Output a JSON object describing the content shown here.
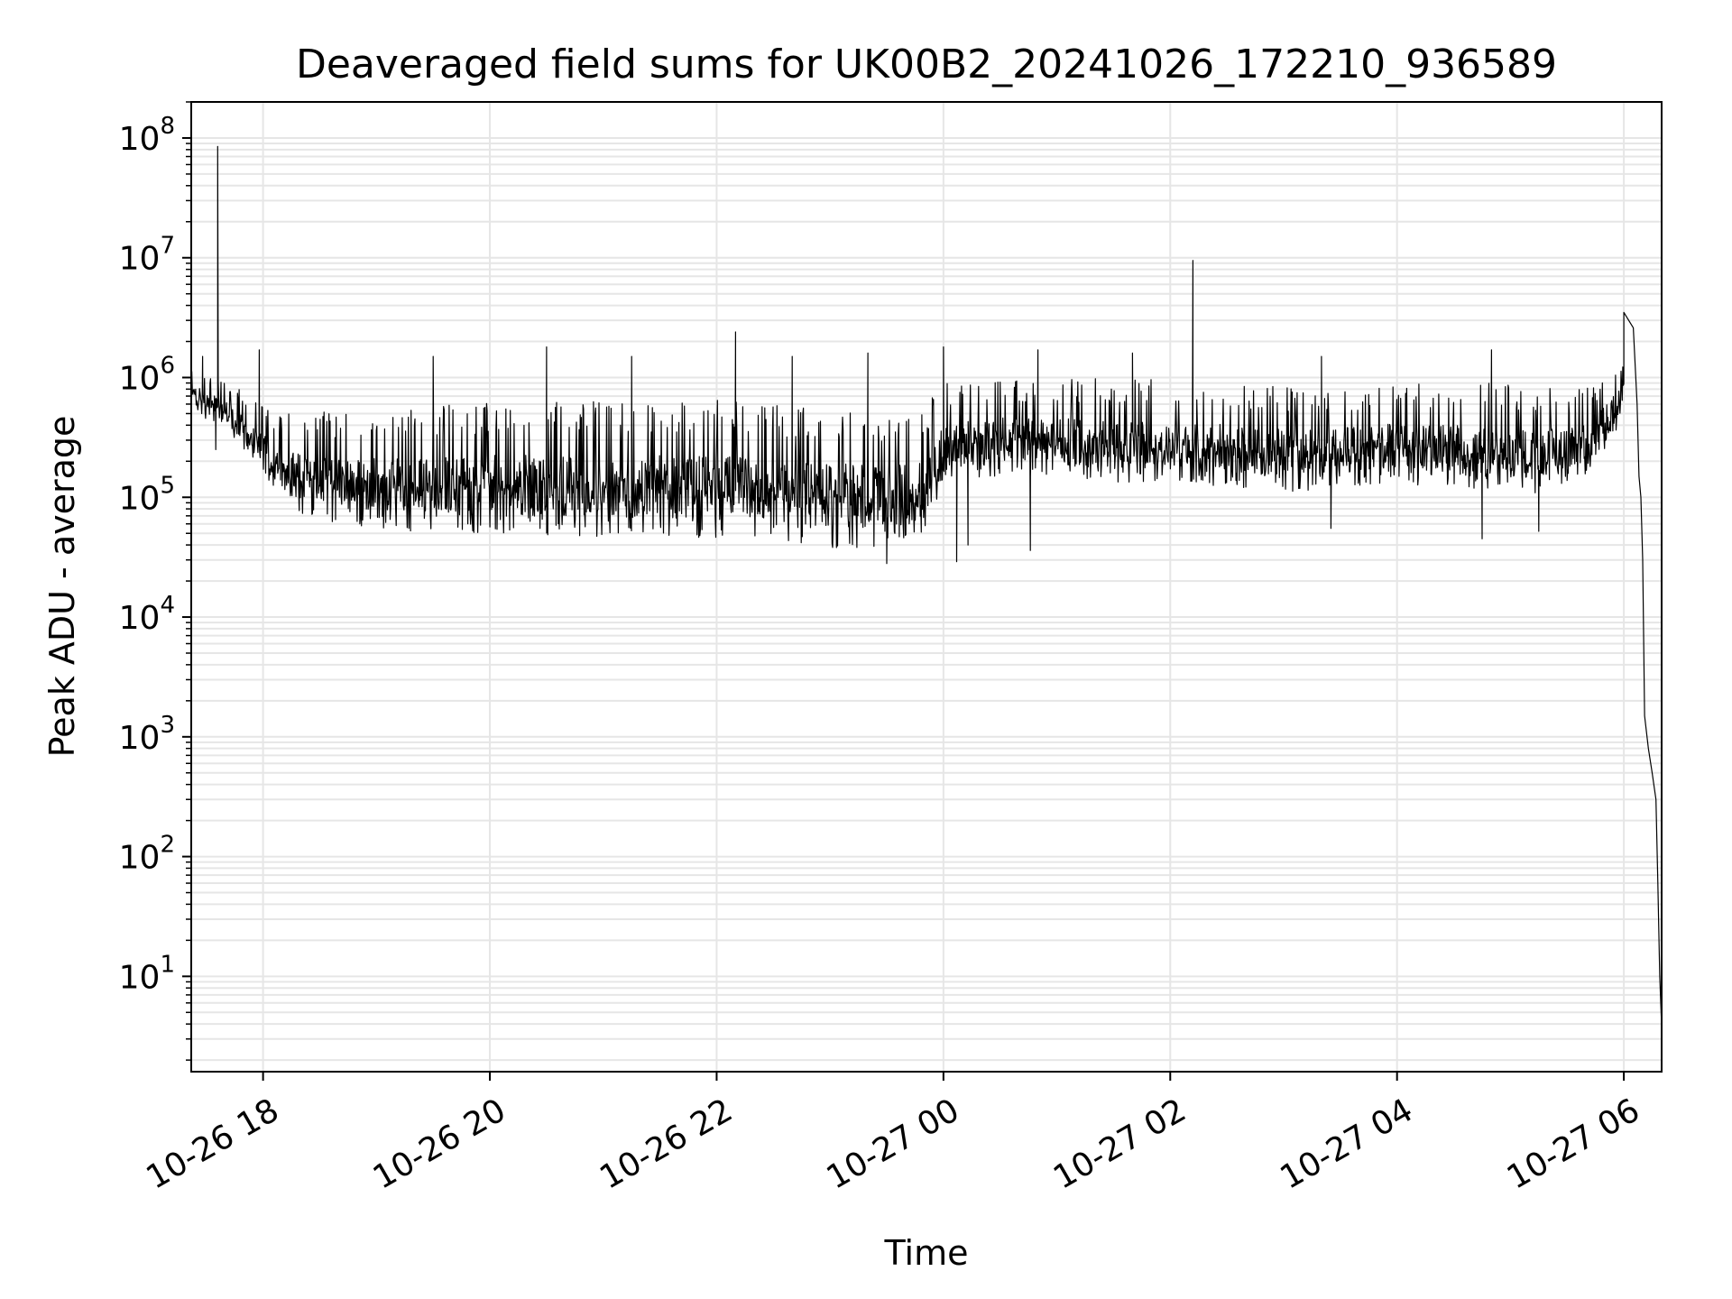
{
  "chart_data": {
    "type": "line",
    "title": "Deaveraged field sums for UK00B2_20241026_172210_936589",
    "xlabel": "Time",
    "ylabel": "Peak ADU - average",
    "yscale": "log",
    "xlim": [
      "2024-10-26 17:22",
      "2024-10-27 06:20"
    ],
    "ylim": [
      1.6,
      200000000
    ],
    "grid": true,
    "grid_color": "#e6e6e6",
    "line_color": "#000000",
    "x_ticks": [
      {
        "value": "2024-10-26 18:00",
        "label": "10-26 18"
      },
      {
        "value": "2024-10-26 20:00",
        "label": "10-26 20"
      },
      {
        "value": "2024-10-26 22:00",
        "label": "10-26 22"
      },
      {
        "value": "2024-10-27 00:00",
        "label": "10-27 00"
      },
      {
        "value": "2024-10-27 02:00",
        "label": "10-27 02"
      },
      {
        "value": "2024-10-27 04:00",
        "label": "10-27 04"
      },
      {
        "value": "2024-10-27 06:00",
        "label": "10-27 06"
      }
    ],
    "y_ticks": [
      {
        "value": 10,
        "base": "10",
        "exp": "1"
      },
      {
        "value": 100,
        "base": "10",
        "exp": "2"
      },
      {
        "value": 1000,
        "base": "10",
        "exp": "3"
      },
      {
        "value": 10000,
        "base": "10",
        "exp": "4"
      },
      {
        "value": 100000,
        "base": "10",
        "exp": "5"
      },
      {
        "value": 1000000,
        "base": "10",
        "exp": "6"
      },
      {
        "value": 10000000,
        "base": "10",
        "exp": "7"
      },
      {
        "value": 100000000,
        "base": "10",
        "exp": "8"
      }
    ],
    "series": [
      {
        "envelope": {
          "x": [
            "2024-10-26 17:22",
            "2024-10-26 17:30",
            "2024-10-26 17:40",
            "2024-10-26 17:50",
            "2024-10-26 18:00",
            "2024-10-26 18:10",
            "2024-10-26 18:30",
            "2024-10-26 19:00",
            "2024-10-26 19:30",
            "2024-10-26 20:00",
            "2024-10-26 20:30",
            "2024-10-26 21:00",
            "2024-10-26 21:30",
            "2024-10-26 22:00",
            "2024-10-26 22:30",
            "2024-10-26 23:00",
            "2024-10-26 23:30",
            "2024-10-26 23:50",
            "2024-10-27 00:00",
            "2024-10-27 00:30",
            "2024-10-27 01:00",
            "2024-10-27 01:30",
            "2024-10-27 02:00",
            "2024-10-27 02:30",
            "2024-10-27 03:00",
            "2024-10-27 03:30",
            "2024-10-27 04:00",
            "2024-10-27 04:30",
            "2024-10-27 05:00",
            "2024-10-27 05:30",
            "2024-10-27 05:45",
            "2024-10-27 06:00"
          ],
          "low": [
            550000,
            450000,
            380000,
            250000,
            160000,
            90000,
            60000,
            55000,
            50000,
            50000,
            48000,
            46000,
            45000,
            44000,
            42000,
            38000,
            37000,
            42000,
            120000,
            150000,
            140000,
            130000,
            140000,
            120000,
            110000,
            120000,
            130000,
            120000,
            100000,
            120000,
            170000,
            450000
          ],
          "high": [
            1200000,
            1100000,
            950000,
            750000,
            600000,
            500000,
            520000,
            560000,
            600000,
            620000,
            650000,
            650000,
            650000,
            650000,
            600000,
            560000,
            560000,
            600000,
            900000,
            1000000,
            1000000,
            1000000,
            950000,
            900000,
            850000,
            850000,
            900000,
            900000,
            900000,
            800000,
            900000,
            1500000
          ]
        },
        "spikes": [
          {
            "x": "2024-10-26 17:36",
            "y": 85000000
          },
          {
            "x": "2024-10-26 17:28",
            "y": 1500000
          },
          {
            "x": "2024-10-26 17:58",
            "y": 1700000
          },
          {
            "x": "2024-10-26 19:30",
            "y": 1500000
          },
          {
            "x": "2024-10-26 20:30",
            "y": 1800000
          },
          {
            "x": "2024-10-26 21:15",
            "y": 1500000
          },
          {
            "x": "2024-10-26 22:10",
            "y": 2400000
          },
          {
            "x": "2024-10-26 22:40",
            "y": 1500000
          },
          {
            "x": "2024-10-26 23:20",
            "y": 1600000
          },
          {
            "x": "2024-10-27 00:00",
            "y": 1800000
          },
          {
            "x": "2024-10-27 00:50",
            "y": 1700000
          },
          {
            "x": "2024-10-27 01:40",
            "y": 1600000
          },
          {
            "x": "2024-10-27 02:12",
            "y": 9500000
          },
          {
            "x": "2024-10-27 03:20",
            "y": 1500000
          },
          {
            "x": "2024-10-27 04:50",
            "y": 1700000
          },
          {
            "x": "2024-10-27 06:00",
            "y": 3500000
          },
          {
            "x": "2024-10-27 06:05",
            "y": 2600000
          }
        ],
        "dips": [
          {
            "x": "2024-10-26 17:35",
            "y": 250000
          },
          {
            "x": "2024-10-26 23:30",
            "y": 28000
          },
          {
            "x": "2024-10-27 00:07",
            "y": 29000
          },
          {
            "x": "2024-10-27 00:13",
            "y": 40000
          },
          {
            "x": "2024-10-27 00:46",
            "y": 36000
          },
          {
            "x": "2024-10-27 03:25",
            "y": 55000
          },
          {
            "x": "2024-10-27 04:45",
            "y": 45000
          },
          {
            "x": "2024-10-27 05:15",
            "y": 52000
          }
        ],
        "tail": {
          "x": [
            "2024-10-27 06:07",
            "2024-10-27 06:08",
            "2024-10-27 06:09",
            "2024-10-27 06:10",
            "2024-10-27 06:11",
            "2024-10-27 06:13",
            "2024-10-27 06:15",
            "2024-10-27 06:17",
            "2024-10-27 06:18",
            "2024-10-27 06:19",
            "2024-10-27 06:20"
          ],
          "y": [
            600000,
            150000,
            100000,
            30000,
            1500,
            800,
            500,
            300,
            60,
            10,
            3.8
          ]
        }
      }
    ]
  }
}
